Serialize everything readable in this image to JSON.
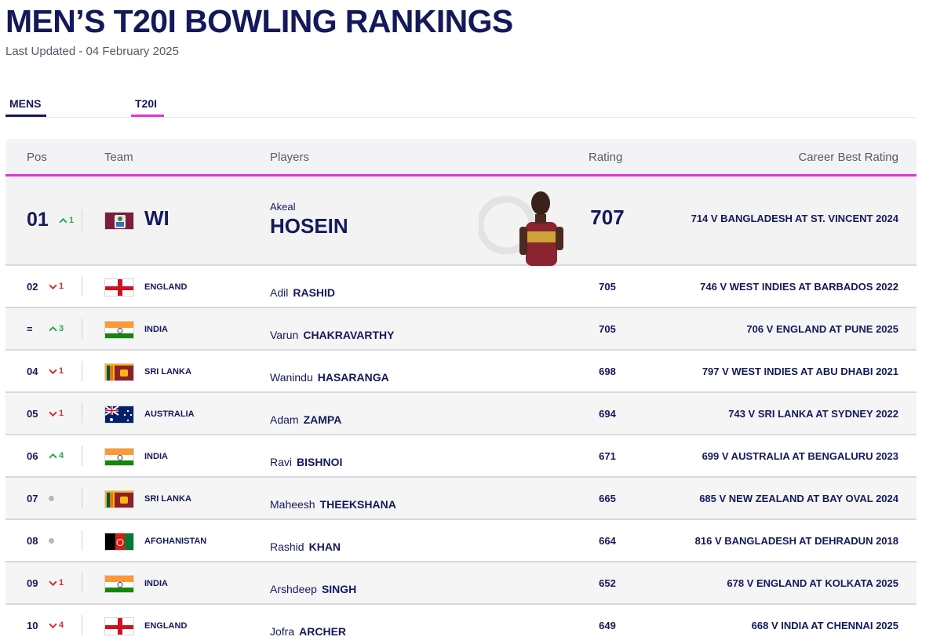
{
  "page": {
    "title": "MEN’S T20I BOWLING RANKINGS",
    "last_updated": "Last Updated - 04 February 2025"
  },
  "tabs": [
    {
      "label": "MENS"
    },
    {
      "label": "T20I"
    }
  ],
  "table": {
    "headers": {
      "pos": "Pos",
      "team": "Team",
      "players": "Players",
      "rating": "Rating",
      "career_best": "Career Best Rating"
    },
    "top": {
      "pos": "01",
      "movement": "up",
      "change": "1",
      "team": "WI",
      "flag": "west-indies-flag",
      "first_name": "Akeal",
      "last_name": "HOSEIN",
      "rating": "707",
      "career_best": "714 V BANGLADESH AT ST. VINCENT 2024"
    },
    "rows": [
      {
        "pos": "02",
        "movement": "down",
        "change": "1",
        "team": "ENGLAND",
        "flag": "england-flag",
        "first_name": "Adil",
        "last_name": "RASHID",
        "rating": "705",
        "career_best": "746 V WEST INDIES AT BARBADOS 2022"
      },
      {
        "pos": "=",
        "movement": "up",
        "change": "3",
        "team": "INDIA",
        "flag": "india-flag",
        "first_name": "Varun",
        "last_name": "CHAKRAVARTHY",
        "rating": "705",
        "career_best": "706 V ENGLAND AT PUNE 2025"
      },
      {
        "pos": "04",
        "movement": "down",
        "change": "1",
        "team": "SRI LANKA",
        "flag": "sri-lanka-flag",
        "first_name": "Wanindu",
        "last_name": "HASARANGA",
        "rating": "698",
        "career_best": "797 V WEST INDIES AT ABU DHABI 2021"
      },
      {
        "pos": "05",
        "movement": "down",
        "change": "1",
        "team": "AUSTRALIA",
        "flag": "australia-flag",
        "first_name": "Adam",
        "last_name": "ZAMPA",
        "rating": "694",
        "career_best": "743 V SRI LANKA AT SYDNEY 2022"
      },
      {
        "pos": "06",
        "movement": "up",
        "change": "4",
        "team": "INDIA",
        "flag": "india-flag",
        "first_name": "Ravi",
        "last_name": "BISHNOI",
        "rating": "671",
        "career_best": "699 V AUSTRALIA AT BENGALURU 2023"
      },
      {
        "pos": "07",
        "movement": "none",
        "change": "",
        "team": "SRI LANKA",
        "flag": "sri-lanka-flag",
        "first_name": "Maheesh",
        "last_name": "THEEKSHANA",
        "rating": "665",
        "career_best": "685 V NEW ZEALAND AT BAY OVAL 2024"
      },
      {
        "pos": "08",
        "movement": "none",
        "change": "",
        "team": "AFGHANISTAN",
        "flag": "afghanistan-flag",
        "first_name": "Rashid",
        "last_name": "KHAN",
        "rating": "664",
        "career_best": "816 V BANGLADESH AT DEHRADUN 2018"
      },
      {
        "pos": "09",
        "movement": "down",
        "change": "1",
        "team": "INDIA",
        "flag": "india-flag",
        "first_name": "Arshdeep",
        "last_name": "SINGH",
        "rating": "652",
        "career_best": "678 V ENGLAND AT KOLKATA 2025"
      },
      {
        "pos": "10",
        "movement": "down",
        "change": "4",
        "team": "ENGLAND",
        "flag": "england-flag",
        "first_name": "Jofra",
        "last_name": "ARCHER",
        "rating": "649",
        "career_best": "668 V INDIA AT CHENNAI 2025"
      }
    ]
  },
  "colors": {
    "navy": "#14195a",
    "accent_pink": "#e433d8",
    "up_green": "#2aa84a",
    "down_red": "#d22d3a"
  }
}
